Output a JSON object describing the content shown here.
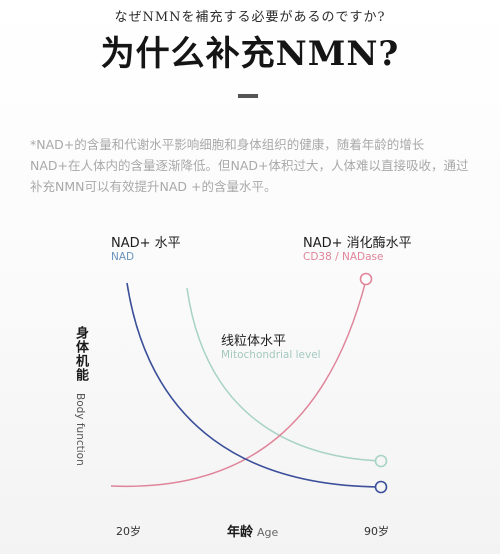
{
  "header": {
    "subtitle_jp": "なぜNMNを補充する必要があるのですか?",
    "title": "为什么补充NMN?"
  },
  "intro_text": "*NAD+的含量和代谢水平影响细胞和身体组织的健康，随着年龄的增长NAD+在人体内的含量逐渐降低。但NAD+体积过大，人体难以直接吸收，通过补充NMN可以有效提升NAD +的含量水平。",
  "chart_data": {
    "type": "line",
    "x_categories": [
      "20岁",
      "90岁"
    ],
    "xlabel_cn": "年龄",
    "xlabel_en": "Age",
    "ylabel_cn": "身体机能",
    "ylabel_en": "Body function",
    "series": [
      {
        "name": "NAD+ 水平",
        "name_en": "NAD",
        "color": "#3b4f9a",
        "trend": "decreasing"
      },
      {
        "name": "线粒体水平",
        "name_en": "Mitochondrial level",
        "color": "#a8d3c6",
        "trend": "decreasing"
      },
      {
        "name": "NAD+ 消化酶水平",
        "name_en": "CD38 / NADase",
        "color": "#e0849a",
        "trend": "increasing"
      }
    ]
  }
}
